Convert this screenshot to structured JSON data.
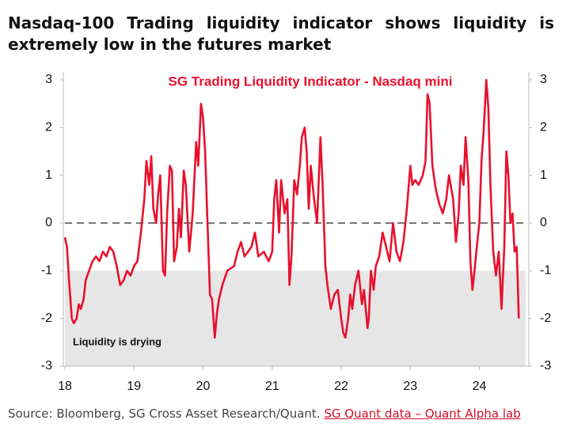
{
  "chart_data": {
    "type": "line",
    "title": "Nasdaq-100 Trading liquidity indicator shows liquidity is extremely low in the futures market",
    "chart_label": "SG Trading Liquidity Indicator - Nasdaq mini",
    "annotation": "Liquidity is drying",
    "source": "Source: Bloomberg, SG Cross Asset Research/Quant.",
    "source_link": "SG Quant data – Quant Alpha lab",
    "shaded_range": [
      -3,
      -1
    ],
    "reference_line": 0,
    "xlim": [
      18,
      24.67
    ],
    "xticks": [
      18,
      19,
      20,
      21,
      22,
      23,
      24
    ],
    "ylim": [
      -3,
      3
    ],
    "yticks": [
      -3,
      -2,
      -1,
      0,
      1,
      2,
      3
    ],
    "y2lim": [
      -3,
      3
    ],
    "y2ticks": [
      -3,
      -2,
      -1,
      0,
      1,
      2,
      3
    ],
    "series": [
      {
        "name": "SG Trading Liquidity Indicator - Nasdaq mini",
        "color": "#e8112d",
        "x": [
          18.0,
          18.03,
          18.06,
          18.08,
          18.1,
          18.13,
          18.17,
          18.2,
          18.23,
          18.27,
          18.3,
          18.35,
          18.4,
          18.45,
          18.5,
          18.55,
          18.6,
          18.65,
          18.7,
          18.75,
          18.8,
          18.85,
          18.9,
          18.95,
          19.0,
          19.05,
          19.1,
          19.15,
          19.18,
          19.22,
          19.25,
          19.28,
          19.32,
          19.35,
          19.38,
          19.42,
          19.45,
          19.48,
          19.52,
          19.55,
          19.58,
          19.62,
          19.65,
          19.68,
          19.72,
          19.75,
          19.8,
          19.85,
          19.9,
          19.93,
          19.97,
          20.0,
          20.03,
          20.06,
          20.1,
          20.13,
          20.17,
          20.2,
          20.23,
          20.28,
          20.35,
          20.45,
          20.5,
          20.55,
          20.6,
          20.65,
          20.7,
          20.75,
          20.8,
          20.88,
          20.95,
          21.0,
          21.03,
          21.06,
          21.1,
          21.13,
          21.18,
          21.22,
          21.25,
          21.28,
          21.32,
          21.36,
          21.4,
          21.43,
          21.47,
          21.5,
          21.53,
          21.56,
          21.6,
          21.65,
          21.7,
          21.73,
          21.77,
          21.8,
          21.85,
          21.9,
          21.95,
          22.0,
          22.03,
          22.06,
          22.1,
          22.13,
          22.16,
          22.2,
          22.25,
          22.3,
          22.33,
          22.38,
          22.4,
          22.43,
          22.47,
          22.5,
          22.55,
          22.6,
          22.65,
          22.7,
          22.75,
          22.8,
          22.85,
          22.9,
          22.95,
          23.0,
          23.03,
          23.07,
          23.12,
          23.18,
          23.22,
          23.25,
          23.28,
          23.32,
          23.37,
          23.42,
          23.47,
          23.52,
          23.56,
          23.62,
          23.66,
          23.7,
          23.73,
          23.77,
          23.8,
          23.84,
          23.87,
          23.9,
          23.93,
          23.97,
          24.0,
          24.03,
          24.06,
          24.1,
          24.13,
          24.16,
          24.2,
          24.24,
          24.28,
          24.32,
          24.36,
          24.39,
          24.42,
          24.45,
          24.48,
          24.51,
          24.54,
          24.57
        ],
        "values": [
          -0.3,
          -0.5,
          -1.2,
          -1.6,
          -2.0,
          -2.1,
          -2.0,
          -1.7,
          -1.8,
          -1.6,
          -1.2,
          -1.0,
          -0.8,
          -0.7,
          -0.8,
          -0.6,
          -0.7,
          -0.5,
          -0.6,
          -0.9,
          -1.3,
          -1.2,
          -1.0,
          -1.1,
          -0.9,
          -0.8,
          -0.2,
          0.5,
          1.3,
          0.8,
          1.4,
          0.3,
          0.0,
          0.6,
          1.0,
          -1.0,
          -1.1,
          0.2,
          1.2,
          1.1,
          -0.8,
          -0.5,
          0.3,
          -0.3,
          1.1,
          0.8,
          -0.6,
          0.2,
          1.7,
          1.2,
          2.5,
          2.2,
          1.5,
          0.2,
          -1.5,
          -1.6,
          -2.4,
          -1.9,
          -1.6,
          -1.3,
          -1.0,
          -0.9,
          -0.6,
          -0.4,
          -0.7,
          -0.6,
          -0.5,
          -0.2,
          -0.7,
          -0.6,
          -0.8,
          -0.6,
          0.5,
          0.9,
          -0.2,
          0.9,
          0.2,
          0.5,
          -1.3,
          -0.7,
          0.9,
          0.6,
          1.2,
          1.8,
          2.0,
          1.5,
          0.3,
          1.2,
          0.6,
          0.0,
          1.8,
          0.8,
          -0.9,
          -1.3,
          -1.8,
          -1.5,
          -1.4,
          -2.0,
          -2.3,
          -2.4,
          -2.0,
          -1.5,
          -1.8,
          -1.3,
          -1.0,
          -1.7,
          -1.4,
          -2.2,
          -2.0,
          -1.0,
          -1.4,
          -0.9,
          -0.7,
          -0.2,
          -0.5,
          -0.8,
          0.0,
          -0.6,
          -0.8,
          -0.4,
          0.3,
          1.2,
          0.8,
          0.9,
          0.8,
          1.0,
          1.3,
          2.7,
          2.5,
          1.2,
          0.7,
          0.4,
          0.2,
          0.5,
          1.0,
          0.5,
          -0.4,
          0.2,
          1.2,
          0.8,
          1.8,
          0.9,
          -0.8,
          -1.4,
          -1.0,
          -0.4,
          0.0,
          1.3,
          1.9,
          3.0,
          2.4,
          0.8,
          -0.6,
          -1.1,
          -0.6,
          -1.8,
          -0.5,
          1.5,
          1.0,
          0.0,
          0.2,
          -0.6,
          -0.5,
          -2.0
        ]
      }
    ]
  }
}
